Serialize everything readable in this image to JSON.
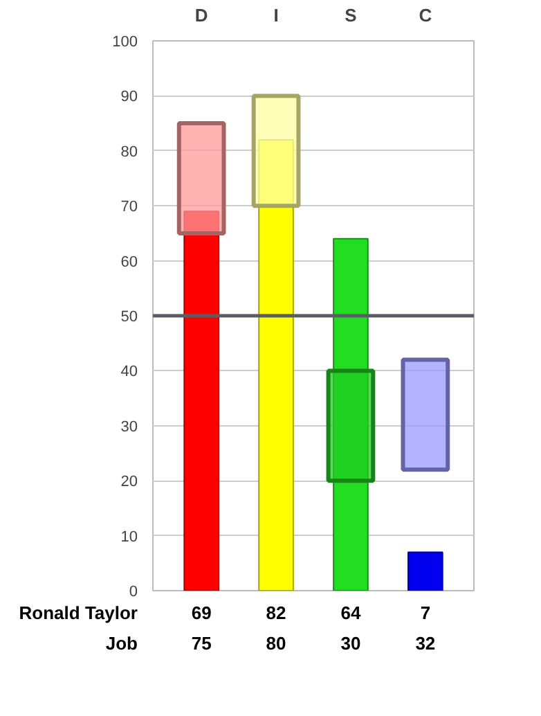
{
  "chart_data": {
    "type": "bar",
    "categories": [
      "D",
      "I",
      "S",
      "C"
    ],
    "ylim": [
      0,
      100
    ],
    "yticks": [
      0,
      10,
      20,
      30,
      40,
      50,
      60,
      70,
      80,
      90,
      100
    ],
    "grid": "y",
    "ref_lines": [
      {
        "axis": "y",
        "value": 50,
        "color": "#5a5e64"
      }
    ],
    "series": [
      {
        "name": "Ronald Taylor",
        "colors": [
          "#ff0000",
          "#ffff00",
          "#22dd22",
          "#0000ee"
        ],
        "values": [
          69,
          82,
          64,
          7
        ],
        "value_labels": [
          "69",
          "82",
          "64",
          "7"
        ]
      },
      {
        "colors": [
          "#ff9999",
          "#ffffa0",
          "#22cc22",
          "#9999ff"
        ],
        "base": [
          65,
          70,
          20,
          22
        ],
        "values": [
          20,
          20,
          20,
          20
        ]
      }
    ],
    "annotations": [
      "Job",
      "75",
      "80",
      "30",
      "32"
    ]
  }
}
